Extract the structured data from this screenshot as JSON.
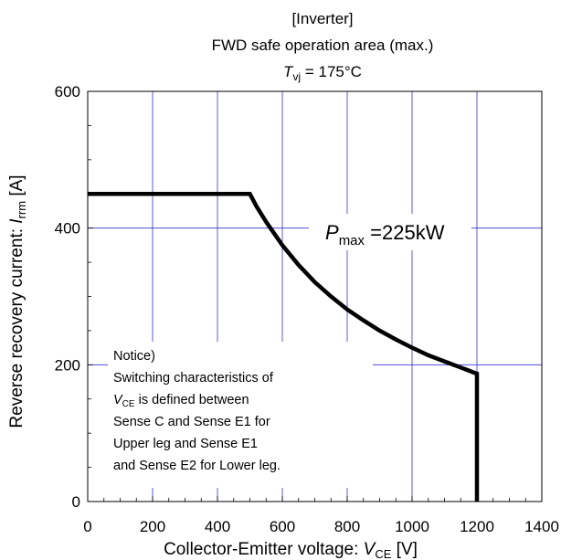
{
  "chart_data": {
    "type": "line",
    "title_lines": {
      "line1": "[Inverter]",
      "line2": "FWD safe operation area (max.)",
      "tvj_symbol": "T",
      "tvj_sub": "vj",
      "tvj_value": " = 175°C"
    },
    "xlabel": {
      "text": "Collector-Emitter voltage:  ",
      "symbol": "V",
      "sub": "CE",
      "unit": " [V]"
    },
    "ylabel": {
      "text": "Reverse recovery current:  ",
      "symbol": "I",
      "sub": "rrm",
      "unit": "  [A]"
    },
    "xlim": [
      0,
      1400
    ],
    "ylim": [
      0,
      600
    ],
    "xticks": [
      "0",
      "200",
      "400",
      "600",
      "800",
      "1000",
      "1200",
      "1400"
    ],
    "yticks": [
      "0",
      "200",
      "400",
      "600"
    ],
    "grid": true,
    "grid_color": "#3333cc",
    "line_color": "#000000",
    "series": [
      {
        "x": [
          0,
          500,
          520,
          550,
          600,
          650,
          700,
          750,
          800,
          850,
          900,
          950,
          1000,
          1050,
          1100,
          1150,
          1200,
          1200,
          1200
        ],
        "y": [
          450,
          450,
          432,
          409,
          375,
          346,
          321,
          300,
          281,
          265,
          250,
          237,
          225,
          214,
          205,
          196,
          187,
          187,
          0
        ]
      }
    ],
    "annotation_pmax": {
      "symbol": "P",
      "sub": "max",
      "value": " =225kW"
    },
    "notice": {
      "line1": "Notice)",
      "line2": "Switching characteristics of",
      "line3_symbol": "V",
      "line3_sub": "CE",
      "line3_rest": " is defined between",
      "line4": "Sense C and Sense E1 for",
      "line5": "Upper leg   and Sense  E1",
      "line6": "and Sense E2 for Lower leg."
    }
  }
}
